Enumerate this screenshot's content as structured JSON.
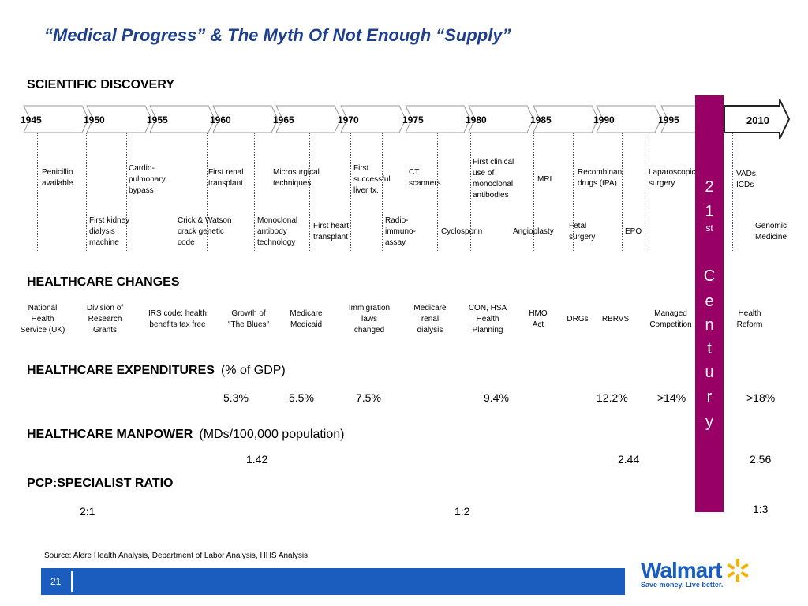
{
  "title": "“Medical Progress” & The Myth Of Not Enough “Supply”",
  "sections": {
    "discovery": "SCIENTIFIC DISCOVERY",
    "changes": "HEALTHCARE CHANGES",
    "expenditures": "HEALTHCARE EXPENDITURES",
    "expenditures_unit": "(% of GDP)",
    "manpower": "HEALTHCARE MANPOWER",
    "manpower_unit": "(MDs/100,000 population)",
    "ratio": "PCP:SPECIALIST RATIO"
  },
  "timeline": {
    "years": [
      "1945",
      "1950",
      "1955",
      "1960",
      "1965",
      "1970",
      "1975",
      "1980",
      "1985",
      "1990",
      "1995"
    ],
    "end_year": "2010"
  },
  "discoveries_upper": [
    "Penicillin\navailable",
    "Cardio-\npulmonary\nbypass",
    "First renal\ntransplant",
    "Microsurgical\ntechniques",
    "First\nsuccessful\nliver tx.",
    "CT\nscanners",
    "First clinical\nuse of\nmonoclonal\nantibodies",
    "MRI",
    "Recombinant\ndrugs (tPA)",
    "Laparoscopic\nsurgery",
    "VADs,\nICDs"
  ],
  "discoveries_lower": [
    "First kidney\ndialysis\nmachine",
    "Crick & Watson\ncrack genetic\ncode",
    "Monoclonal\nantibody\ntechnology",
    "First heart\ntransplant",
    "Radio-\nimmuno-\nassay",
    "Cyclosporin",
    "Angioplasty",
    "Fetal\nsurgery",
    "EPO",
    "Genomic\nMedicine"
  ],
  "changes": [
    "National\nHealth\nService (UK)",
    "Division of\nResearch\nGrants",
    "IRS code: health\nbenefits tax free",
    "Growth of\n\"The Blues\"",
    "Medicare\nMedicaid",
    "Immigration\nlaws\nchanged",
    "Medicare\nrenal\ndialysis",
    "CON, HSA\nHealth\nPlanning",
    "HMO\nAct",
    "DRGs",
    "RBRVS",
    "Managed\nCompetition",
    "Health\nReform"
  ],
  "expenditures": [
    "5.3%",
    "5.5%",
    "7.5%",
    "9.4%",
    "12.2%",
    ">14%",
    ">18%"
  ],
  "manpower": [
    "1.42",
    "2.44",
    "2.56"
  ],
  "ratio": [
    "2:1",
    "1:2",
    "1:3"
  ],
  "century_band": {
    "text": "21st Century",
    "letters": [
      "2",
      "1",
      "C",
      "e",
      "n",
      "t",
      "u",
      "r",
      "y"
    ],
    "superscript": "st",
    "color": "#990066"
  },
  "source": "Source: Alere Health Analysis, Department of Labor Analysis, HHS Analysis",
  "footer": {
    "page_number": "21",
    "logo_text": "Walmart",
    "tagline": "Save money. Live better.",
    "bar_color": "#1a5dbf"
  },
  "colors": {
    "title": "#1f3f8f",
    "band": "#990066",
    "brand_blue": "#1a5dbf",
    "spark": "#f5b400"
  }
}
